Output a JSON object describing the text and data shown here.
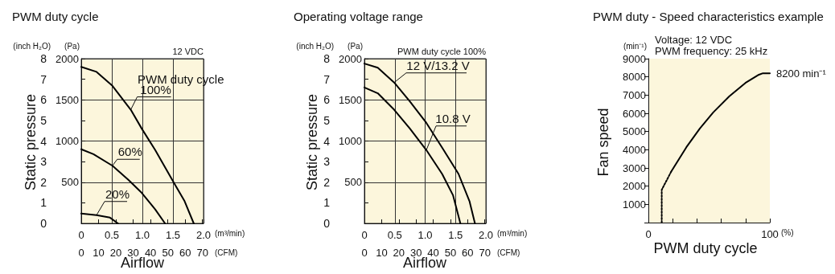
{
  "chart_data": [
    {
      "type": "line",
      "title": "PWM duty cycle",
      "xlabel": "Airflow",
      "ylabel": "Static pressure",
      "legend_title": "PWM duty cycle",
      "marker": "none",
      "grid": true,
      "xlim": [
        0,
        2
      ],
      "xticks": [
        0,
        0.5,
        {
          "value": 1,
          "label": "1.0"
        },
        {
          "value": 1.5,
          "label": "1.5"
        },
        {
          "value": 2,
          "label": "2.0"
        }
      ],
      "x2lim": [
        0,
        70.6
      ],
      "x2ticks": [
        0,
        10,
        20,
        30,
        40,
        50,
        60,
        70
      ],
      "ylim": [
        0,
        8
      ],
      "yticks": [
        0,
        1,
        2,
        3,
        4,
        5,
        6,
        7,
        8
      ],
      "y2lim": [
        0,
        2000
      ],
      "y2ticks": [
        {
          "value": 0,
          "label": null
        },
        500,
        1000,
        1500,
        2000
      ],
      "annotations": [
        "(inch H₂O)",
        "(Pa)",
        "(m³/min)",
        "(CFM)",
        "12 VDC"
      ],
      "series": [
        {
          "name": "100%",
          "axis": "y2",
          "color": "#000000",
          "x": [
            0,
            0.25,
            0.51,
            0.81,
            0.99,
            1.21,
            1.51,
            1.69,
            1.84
          ],
          "values": [
            1900,
            1840,
            1670,
            1380,
            1150,
            890,
            500,
            270,
            0
          ]
        },
        {
          "name": "60%",
          "axis": "y2",
          "color": "#000000",
          "x": [
            0,
            0.2,
            0.51,
            0.77,
            0.99,
            1.21,
            1.37
          ],
          "values": [
            900,
            840,
            700,
            530,
            370,
            170,
            0
          ]
        },
        {
          "name": "20%",
          "axis": "y2",
          "color": "#000000",
          "x": [
            0,
            0.25,
            0.47,
            0.6
          ],
          "values": [
            120,
            100,
            70,
            0
          ]
        }
      ]
    },
    {
      "type": "line",
      "title": "Operating voltage range",
      "xlabel": "Airflow",
      "ylabel": "Static pressure",
      "marker": "none",
      "grid": true,
      "xlim": [
        0,
        2
      ],
      "xticks": [
        0,
        0.5,
        {
          "value": 1,
          "label": "1.0"
        },
        {
          "value": 1.5,
          "label": "1.5"
        },
        {
          "value": 2,
          "label": "2.0"
        }
      ],
      "x2lim": [
        0,
        70.6
      ],
      "x2ticks": [
        0,
        10,
        20,
        30,
        40,
        50,
        60,
        70
      ],
      "ylim": [
        0,
        8
      ],
      "yticks": [
        0,
        1,
        2,
        3,
        4,
        5,
        6,
        7,
        8
      ],
      "y2lim": [
        0,
        2000
      ],
      "y2ticks": [
        {
          "value": 0,
          "label": null
        },
        500,
        1000,
        1500,
        2000
      ],
      "annotations": [
        "(inch H₂O)",
        "(Pa)",
        "(m³/min)",
        "(CFM)",
        "PWM duty cycle 100%"
      ],
      "series": [
        {
          "name": "12 V/13.2 V",
          "axis": "y2",
          "color": "#000000",
          "x": [
            0,
            0.22,
            0.49,
            0.75,
            1.02,
            1.28,
            1.55,
            1.73,
            1.82
          ],
          "values": [
            1940,
            1890,
            1710,
            1480,
            1220,
            920,
            600,
            270,
            0
          ]
        },
        {
          "name": "10.8 V",
          "axis": "y2",
          "color": "#000000",
          "x": [
            0,
            0.22,
            0.49,
            0.75,
            1.02,
            1.28,
            1.46,
            1.58
          ],
          "values": [
            1650,
            1580,
            1380,
            1150,
            890,
            600,
            340,
            0
          ]
        }
      ]
    },
    {
      "type": "line",
      "title": "PWM duty - Speed characteristics example",
      "xlabel": "PWM duty cycle",
      "ylabel": "Fan speed",
      "marker": "none",
      "xlim": [
        0,
        100
      ],
      "xticks": [
        0,
        {
          "value": 20,
          "label": null
        },
        {
          "value": 40,
          "label": null
        },
        {
          "value": 60,
          "label": null
        },
        {
          "value": 80,
          "label": null
        },
        100
      ],
      "ylim": [
        0,
        9000
      ],
      "yticks": [
        {
          "value": 0,
          "label": null
        },
        1000,
        2000,
        3000,
        4000,
        5000,
        6000,
        7000,
        8000,
        9000
      ],
      "annotations": [
        "(min⁻¹)",
        "(%)",
        "Voltage: 12 VDC",
        "PWM frequency: 25 kHz",
        {
          "text": "8200 min⁻¹",
          "x": 100,
          "y": 8200
        }
      ],
      "series": [
        {
          "color": "#000000",
          "line_style": "dotted",
          "x": [
            11,
            11,
            18.8
          ],
          "values": [
            0,
            1800,
            2800
          ]
        },
        {
          "color": "#000000",
          "line_style": "solid",
          "x": [
            18.8,
            31.3,
            42.4,
            53.4,
            66.7,
            79.9,
            91,
            94.3,
            100
          ],
          "values": [
            2800,
            4140,
            5170,
            6050,
            6940,
            7670,
            8120,
            8200,
            8200
          ]
        }
      ]
    }
  ]
}
